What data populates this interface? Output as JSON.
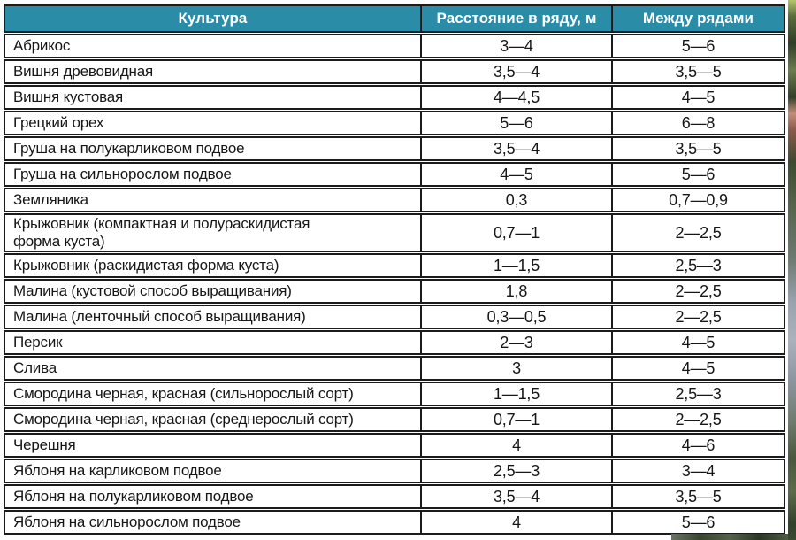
{
  "colors": {
    "header_bg": "#2b8ca8",
    "header_text": "#ffffff",
    "border": "#1b1b1b",
    "text": "#161616"
  },
  "table": {
    "headers": [
      "Культура",
      "Расстояние в ряду, м",
      "Между рядами"
    ],
    "rows": [
      [
        "Абрикос",
        "3—4",
        "5—6"
      ],
      [
        "Вишня древовидная",
        "3,5—4",
        "3,5—5"
      ],
      [
        "Вишня кустовая",
        "4—4,5",
        "4—5"
      ],
      [
        "Грецкий орех",
        "5—6",
        "6—8"
      ],
      [
        "Груша на полукарликовом подвое",
        "3,5—4",
        "3,5—5"
      ],
      [
        "Груша на сильнорослом подвое",
        "4—5",
        "5—6"
      ],
      [
        "Земляника",
        "0,3",
        "0,7—0,9"
      ],
      [
        "Крыжовник (компактная и полураскидистая\nформа куста)",
        "0,7—1",
        "2—2,5"
      ],
      [
        "Крыжовник (раскидистая форма куста)",
        "1—1,5",
        "2,5—3"
      ],
      [
        "Малина (кустовой способ выращивания)",
        "1,8",
        "2—2,5"
      ],
      [
        "Малина (ленточный способ выращивания)",
        "0,3—0,5",
        "2—2,5"
      ],
      [
        "Персик",
        "2—3",
        "4—5"
      ],
      [
        "Слива",
        "3",
        "4—5"
      ],
      [
        "Смородина черная, красная (сильнорослый сорт)",
        "1—1,5",
        "2,5—3"
      ],
      [
        "Смородина черная, красная (среднерослый сорт)",
        "0,7—1",
        "2—2,5"
      ],
      [
        "Черешня",
        "4",
        "4—6"
      ],
      [
        "Яблоня на карликовом подвое",
        "2,5—3",
        "3—4"
      ],
      [
        "Яблоня на полукарликовом подвое",
        "3,5—4",
        "3,5—5"
      ],
      [
        "Яблоня на сильнорослом подвое",
        "4",
        "5—6"
      ]
    ]
  }
}
